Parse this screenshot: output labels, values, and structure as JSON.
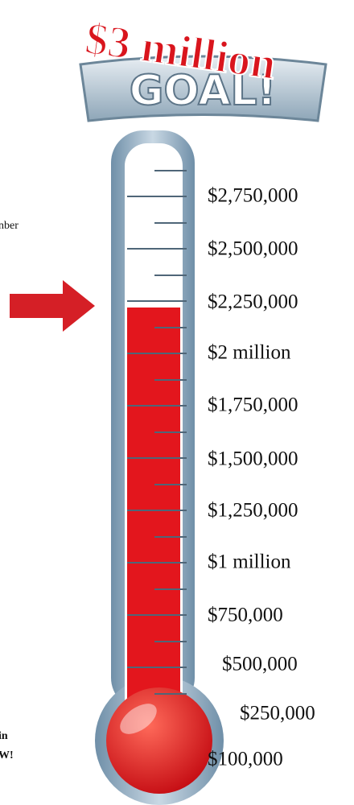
{
  "banner": {
    "amount": "$3 million",
    "goal": "GOAL!"
  },
  "side_text": {
    "line1": "nber",
    "line2": "in",
    "line3": "W!"
  },
  "scale": {
    "labels": [
      "$2,750,000",
      "$2,500,000",
      "$2,250,000",
      "$2 million",
      "$1,750,000",
      "$1,500,000",
      "$1,250,000",
      "$1 million",
      "$750,000",
      "$500,000",
      "$250,000",
      "$100,000"
    ]
  }
}
